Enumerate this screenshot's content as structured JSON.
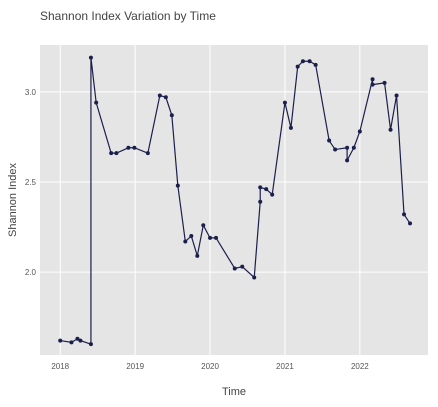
{
  "chart_data": {
    "type": "line",
    "title": "Shannon Index Variation by Time",
    "x_label": "Time",
    "y_label": "Shannon Index",
    "x": [
      2018.0,
      2018.15,
      2018.23,
      2018.27,
      2018.41,
      2018.41,
      2018.48,
      2018.68,
      2018.75,
      2018.91,
      2018.99,
      2019.17,
      2019.33,
      2019.41,
      2019.49,
      2019.57,
      2019.67,
      2019.75,
      2019.83,
      2019.91,
      2020.0,
      2020.08,
      2020.33,
      2020.43,
      2020.59,
      2020.67,
      2020.67,
      2020.75,
      2020.83,
      2021.0,
      2021.08,
      2021.17,
      2021.24,
      2021.33,
      2021.41,
      2021.59,
      2021.67,
      2021.83,
      2021.83,
      2021.92,
      2022.0,
      2022.17,
      2022.17,
      2022.33,
      2022.41,
      2022.49,
      2022.59,
      2022.67
    ],
    "series": [
      {
        "name": "Shannon Index",
        "color": "#1b1f4b",
        "values": [
          1.62,
          1.61,
          1.63,
          1.62,
          1.6,
          3.19,
          2.94,
          2.66,
          2.66,
          2.69,
          2.69,
          2.66,
          2.98,
          2.97,
          2.87,
          2.48,
          2.17,
          2.2,
          2.09,
          2.26,
          2.19,
          2.19,
          2.02,
          2.03,
          1.97,
          2.39,
          2.47,
          2.46,
          2.43,
          2.94,
          2.8,
          3.14,
          3.17,
          3.17,
          3.15,
          2.73,
          2.68,
          2.69,
          2.62,
          2.69,
          2.78,
          3.07,
          3.04,
          3.05,
          2.79,
          2.98,
          2.32,
          2.27
        ]
      }
    ],
    "xlim": [
      2017.73,
      2022.91
    ],
    "ylim": [
      1.54,
      3.26
    ],
    "xticks": [
      2018,
      2019,
      2020,
      2021,
      2022
    ],
    "yticks": [
      {
        "value": 2,
        "label": "2.0"
      },
      2.5,
      {
        "value": 3,
        "label": "3.0"
      }
    ],
    "grid": true
  }
}
